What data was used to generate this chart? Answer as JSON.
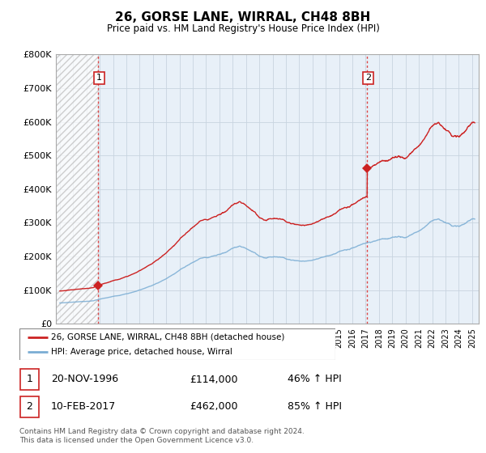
{
  "title": "26, GORSE LANE, WIRRAL, CH48 8BH",
  "subtitle": "Price paid vs. HM Land Registry's House Price Index (HPI)",
  "ylim": [
    0,
    800000
  ],
  "yticks": [
    0,
    100000,
    200000,
    300000,
    400000,
    500000,
    600000,
    700000,
    800000
  ],
  "ytick_labels": [
    "£0",
    "£100K",
    "£200K",
    "£300K",
    "£400K",
    "£500K",
    "£600K",
    "£700K",
    "£800K"
  ],
  "xlim_start": 1993.7,
  "xlim_end": 2025.5,
  "hpi_color": "#7aadd4",
  "price_color": "#cc2222",
  "marker_color": "#cc2222",
  "vline_color": "#dd4444",
  "transaction1_year": 1996.89,
  "transaction1_price": 114000,
  "transaction2_year": 2017.11,
  "transaction2_price": 462000,
  "legend_line1": "26, GORSE LANE, WIRRAL, CH48 8BH (detached house)",
  "legend_line2": "HPI: Average price, detached house, Wirral",
  "table_row1": [
    "1",
    "20-NOV-1996",
    "£114,000",
    "46% ↑ HPI"
  ],
  "table_row2": [
    "2",
    "10-FEB-2017",
    "£462,000",
    "85% ↑ HPI"
  ],
  "footer": "Contains HM Land Registry data © Crown copyright and database right 2024.\nThis data is licensed under the Open Government Licence v3.0.",
  "plot_bg_color": "#e8f0f8",
  "hatch_color": "#aaaaaa",
  "grid_color": "#c8d4e0"
}
